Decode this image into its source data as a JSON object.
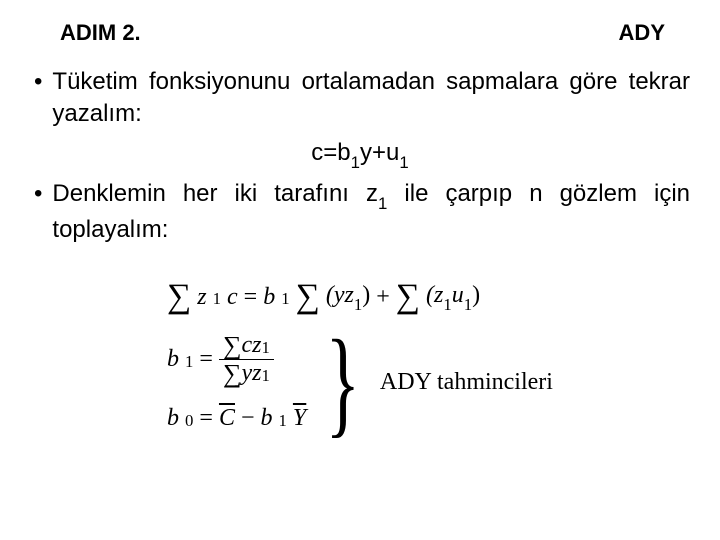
{
  "header": {
    "step": "ADIM 2.",
    "ady": "ADY"
  },
  "bullets": {
    "b1": "Tüketim fonksiyonunu ortalamadan sapmalara göre tekrar yazalım:",
    "eq_c": "c=b",
    "eq_sub1a": "1",
    "eq_mid": "y+u",
    "eq_sub1b": "1",
    "b2a": "Denklemin her iki tarafını z",
    "b2_sub": "1",
    "b2b": " ile çarpıp n gözlem için toplayalım:"
  },
  "math": {
    "row1": {
      "lhs_inner": "z",
      "lhs_sub": "1",
      "lhs_c": "c",
      "eq": "=",
      "b": "b",
      "b_sub": "1",
      "p1a": "(yz",
      "p1_sub": "1",
      "p1b": ")",
      "plus": "+",
      "p2a": "(z",
      "p2_sub": "1",
      "p2u": "u",
      "p2u_sub": "1",
      "p2b": ")"
    },
    "row2": {
      "b": "b",
      "b_sub": "1",
      "eq": "=",
      "num_c": "cz",
      "num_sub": "1",
      "den_y": "yz",
      "den_sub": "1"
    },
    "row3": {
      "b": "b",
      "b_sub": "0",
      "eq": "=",
      "Cbar": "C",
      "minus": "−",
      "b1": "b",
      "b1_sub": "1",
      "Ybar": "Y"
    },
    "label": "ADY tahmincileri"
  }
}
